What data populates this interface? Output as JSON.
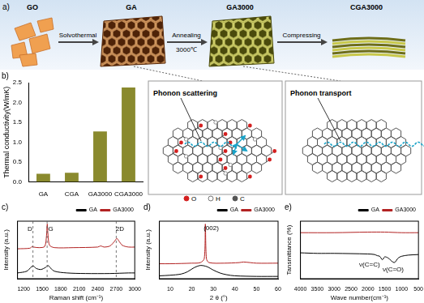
{
  "diagram": {
    "panel_label": "a)",
    "stages": [
      "GO",
      "GA",
      "GA3000",
      "CGA3000"
    ],
    "steps": [
      {
        "label": "Solvothermal"
      },
      {
        "label": "Annealing",
        "sublabel": "3000℃"
      },
      {
        "label": "Compressing"
      }
    ],
    "insets": [
      {
        "label": "Phonon scattering"
      },
      {
        "label": "Phonon transport"
      }
    ],
    "atom_legend": [
      "O",
      "H",
      "C"
    ]
  },
  "chart_data": [
    {
      "panel_label": "b)",
      "type": "bar",
      "categories": [
        "GA",
        "CGA",
        "GA3000",
        "CGA3000"
      ],
      "values": [
        0.2,
        0.23,
        1.27,
        2.38
      ],
      "color": "#8a8a2e",
      "ylabel": "Thermal conductivity(W/mK)",
      "ylim": [
        0,
        2.5
      ],
      "yticks": [
        {
          "value": 0,
          "label": "0.0"
        },
        0.5,
        {
          "value": 1,
          "label": "1.0"
        },
        1.5,
        {
          "value": 2,
          "label": "2.0"
        },
        2.5
      ],
      "grid": false
    },
    {
      "panel_label": "c)",
      "type": "line",
      "xlabel": "Raman shift (cm⁻¹)",
      "ylabel": "Intensity (a.u.)",
      "xlim": [
        1100,
        3000
      ],
      "xticks": [
        1200,
        1500,
        1800,
        2100,
        2400,
        2700,
        3000
      ],
      "ylim": [
        0,
        10
      ],
      "tick_labels": "x",
      "grid": false,
      "legend": "upper right",
      "series": [
        {
          "name": "GA",
          "color": "#000000",
          "x": [
            1100,
            1250,
            1330,
            1360,
            1400,
            1480,
            1560,
            1595,
            1630,
            1700,
            1900,
            2200,
            2600,
            2900,
            3000
          ],
          "values": [
            1.0,
            1.3,
            2.1,
            2.2,
            1.8,
            1.6,
            2.0,
            2.3,
            1.9,
            1.3,
            1.0,
            0.9,
            0.9,
            1.0,
            1.0
          ]
        },
        {
          "name": "GA3000",
          "color": "#b22222",
          "x": [
            1100,
            1300,
            1340,
            1360,
            1450,
            1540,
            1570,
            1582,
            1595,
            1620,
            1700,
            2000,
            2400,
            2450,
            2500,
            2600,
            2680,
            2710,
            2740,
            2800,
            2900,
            3000
          ],
          "values": [
            5.2,
            5.3,
            5.6,
            5.5,
            5.4,
            5.6,
            7.5,
            9.5,
            7.5,
            5.8,
            5.4,
            5.4,
            5.5,
            5.7,
            5.5,
            5.7,
            6.6,
            7.0,
            6.6,
            5.8,
            5.5,
            5.5
          ]
        }
      ],
      "reference_lines": [
        1350,
        1580,
        2700
      ],
      "annotations": [
        {
          "text": "D",
          "x": 1300,
          "y": 8.6
        },
        {
          "text": "G",
          "x": 1640,
          "y": 8.6
        },
        {
          "text": "2D",
          "x": 2760,
          "y": 8.6
        }
      ]
    },
    {
      "panel_label": "d)",
      "type": "line",
      "xlabel": "2 θ (°)",
      "ylabel": "Intensity (a.u.)",
      "xlim": [
        5,
        60
      ],
      "xticks": [
        10,
        20,
        30,
        40,
        50,
        60
      ],
      "ylim": [
        0,
        10
      ],
      "tick_labels": "x",
      "grid": false,
      "legend": "upper right",
      "series": [
        {
          "name": "GA",
          "color": "#000000",
          "x": [
            5,
            10,
            15,
            18,
            21,
            24,
            27,
            30,
            33,
            36,
            40,
            50,
            60
          ],
          "values": [
            0.5,
            0.6,
            0.8,
            1.2,
            1.9,
            2.3,
            2.1,
            1.5,
            1.0,
            0.7,
            0.5,
            0.4,
            0.4
          ]
        },
        {
          "name": "GA3000",
          "color": "#b22222",
          "x": [
            5,
            10,
            20,
            24,
            25.8,
            26.3,
            26.8,
            28,
            35,
            42,
            44,
            50,
            60
          ],
          "values": [
            2.6,
            2.6,
            2.7,
            2.8,
            3.5,
            9.5,
            3.5,
            2.8,
            2.7,
            2.8,
            2.9,
            2.7,
            2.7
          ]
        }
      ],
      "annotations": [
        {
          "text": "(002)",
          "x": 29,
          "y": 8.8
        }
      ]
    },
    {
      "panel_label": "e)",
      "type": "line",
      "xlabel": "Wave number(cm⁻¹)",
      "ylabel": "Tansmittance (%)",
      "xlim": [
        4000,
        500
      ],
      "xticks": [
        4000,
        3500,
        3000,
        2500,
        2000,
        1500,
        1000,
        500
      ],
      "ylim": [
        0,
        10
      ],
      "tick_labels": "x",
      "grid": false,
      "legend": "upper right",
      "series": [
        {
          "name": "GA",
          "color": "#000000",
          "x": [
            4000,
            3500,
            3000,
            2000,
            1800,
            1720,
            1650,
            1570,
            1500,
            1400,
            1220,
            1100,
            1000,
            800,
            500
          ],
          "values": [
            4.5,
            4.4,
            4.4,
            4.3,
            4.2,
            4.0,
            3.9,
            3.3,
            3.8,
            3.6,
            2.8,
            3.6,
            3.9,
            4.1,
            4.2
          ]
        },
        {
          "name": "GA3000",
          "color": "#b22222",
          "x": [
            4000,
            3000,
            2000,
            1500,
            1000,
            500
          ],
          "values": [
            8.0,
            8.0,
            8.1,
            8.1,
            8.0,
            8.0
          ]
        }
      ],
      "annotations": [
        {
          "text": "ν(C=C)",
          "x": 1950,
          "y": 2.4
        },
        {
          "text": "ν(C=O)",
          "x": 1250,
          "y": 1.6
        }
      ]
    }
  ]
}
